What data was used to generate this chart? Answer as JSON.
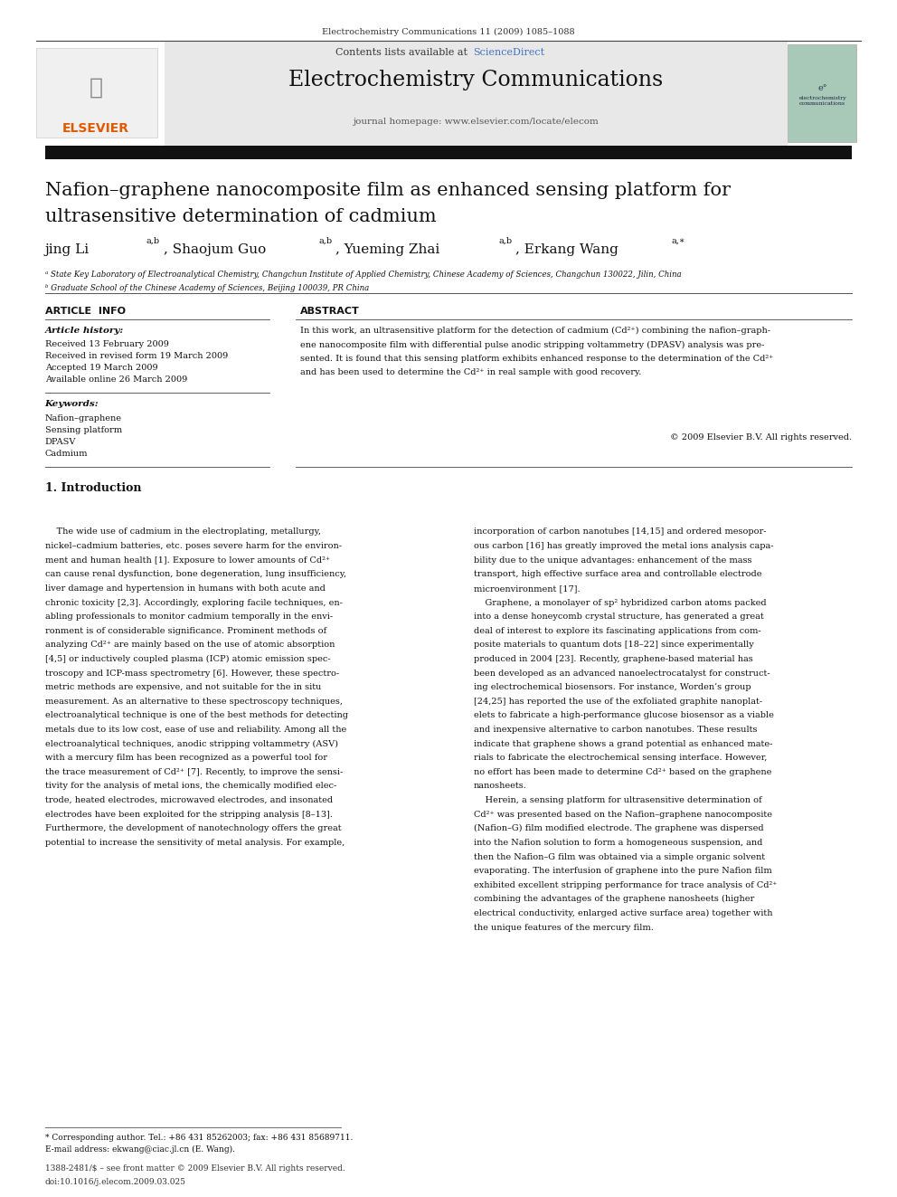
{
  "page_width": 9.92,
  "page_height": 13.23,
  "bg_color": "#ffffff",
  "top_journal_ref": "Electrochemistry Communications 11 (2009) 1085–1088",
  "journal_name": "Electrochemistry Communications",
  "journal_homepage": "journal homepage: www.elsevier.com/locate/elecom",
  "contents_line": "Contents lists available at ScienceDirect",
  "sciencedirect_color": "#4472c4",
  "article_title_line1": "Nafion–graphene nanocomposite film as enhanced sensing platform for",
  "article_title_line2": "ultrasensitive determination of cadmium",
  "affil_a": "ᵃ State Key Laboratory of Electroanalytical Chemistry, Changchun Institute of Applied Chemistry, Chinese Academy of Sciences, Changchun 130022, Jilin, China",
  "affil_b": "ᵇ Graduate School of the Chinese Academy of Sciences, Beijing 100039, PR China",
  "article_info_header": "ARTICLE  INFO",
  "abstract_header": "ABSTRACT",
  "article_history_label": "Article history:",
  "received": "Received 13 February 2009",
  "revised": "Received in revised form 19 March 2009",
  "accepted": "Accepted 19 March 2009",
  "available": "Available online 26 March 2009",
  "keywords_label": "Keywords:",
  "keywords": [
    "Nafion–graphene",
    "Sensing platform",
    "DPASV",
    "Cadmium"
  ],
  "copyright": "© 2009 Elsevier B.V. All rights reserved.",
  "intro_header": "1. Introduction",
  "footnote_star": "* Corresponding author. Tel.: +86 431 85262003; fax: +86 431 85689711.",
  "footnote_email": "E-mail address: ekwang@ciac.jl.cn (E. Wang).",
  "footer_issn": "1388-2481/$ – see front matter © 2009 Elsevier B.V. All rights reserved.",
  "footer_doi": "doi:10.1016/j.elecom.2009.03.025",
  "elsevier_color": "#e05a00",
  "gray_header_bg": "#e8e8e8",
  "link_color": "#4472c4"
}
